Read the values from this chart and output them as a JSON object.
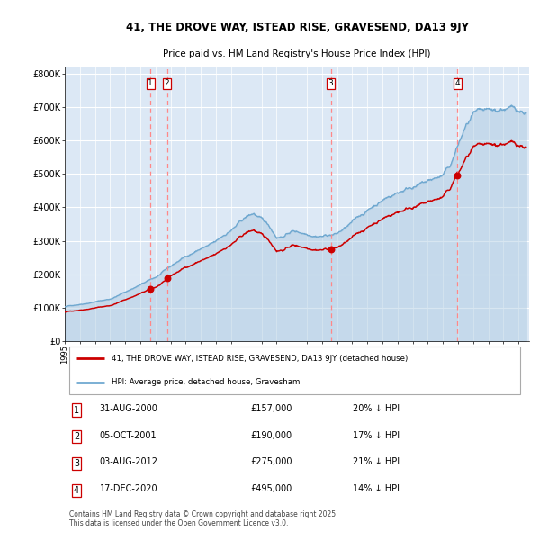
{
  "title_line1": "41, THE DROVE WAY, ISTEAD RISE, GRAVESEND, DA13 9JY",
  "title_line2": "Price paid vs. HM Land Registry's House Price Index (HPI)",
  "legend_red": "41, THE DROVE WAY, ISTEAD RISE, GRAVESEND, DA13 9JY (detached house)",
  "legend_blue": "HPI: Average price, detached house, Gravesham",
  "footer": "Contains HM Land Registry data © Crown copyright and database right 2025.\nThis data is licensed under the Open Government Licence v3.0.",
  "transactions": [
    {
      "num": 1,
      "date": "31-AUG-2000",
      "price": 157000,
      "hpi_diff": "20% ↓ HPI"
    },
    {
      "num": 2,
      "date": "05-OCT-2001",
      "price": 190000,
      "hpi_diff": "17% ↓ HPI"
    },
    {
      "num": 3,
      "date": "03-AUG-2012",
      "price": 275000,
      "hpi_diff": "21% ↓ HPI"
    },
    {
      "num": 4,
      "date": "17-DEC-2020",
      "price": 495000,
      "hpi_diff": "14% ↓ HPI"
    }
  ],
  "transaction_dates_decimal": [
    2000.664,
    2001.756,
    2012.586,
    2020.956
  ],
  "transaction_prices": [
    157000,
    190000,
    275000,
    495000
  ],
  "ylim": [
    0,
    820000
  ],
  "yticks": [
    0,
    100000,
    200000,
    300000,
    400000,
    500000,
    600000,
    700000,
    800000
  ],
  "ytick_labels": [
    "£0",
    "£100K",
    "£200K",
    "£300K",
    "£400K",
    "£500K",
    "£600K",
    "£700K",
    "£800K"
  ],
  "xlim_start": 1995.0,
  "xlim_end": 2025.7,
  "plot_bg_color": "#dce8f5",
  "grid_color": "#ffffff",
  "red_color": "#cc0000",
  "blue_color": "#6fa8d0",
  "blue_fill_color": "#aac8e0",
  "dashed_color": "#ff8888"
}
